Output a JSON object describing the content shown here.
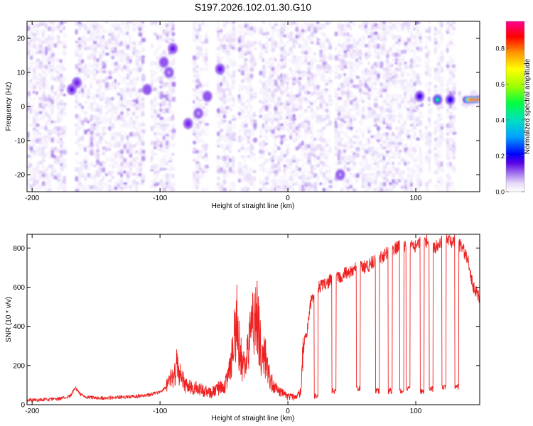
{
  "figure": {
    "title": "S197.2026.102.01.30.G10"
  },
  "chart_data": [
    {
      "type": "heatmap",
      "title": "S197.2026.102.01.30.G10",
      "xlabel": "Height of straight line (km)",
      "ylabel": "Frequency (Hz)",
      "xlim": [
        -204,
        150
      ],
      "ylim": [
        -25,
        25
      ],
      "xticks": [
        -200,
        -100,
        0,
        100
      ],
      "yticks": [
        -20,
        -10,
        0,
        10,
        20
      ],
      "colorbar": {
        "label": "Normalized spectral amplitude",
        "range": [
          0.0,
          0.95
        ],
        "ticks": [
          0.0,
          0.2,
          0.4,
          0.6,
          0.8
        ],
        "colormap": [
          "#ffffff",
          "#e6d8f8",
          "#b693ef",
          "#7b2bee",
          "#5a00e6",
          "#0000ff",
          "#00bfff",
          "#00ff60",
          "#c8ff00",
          "#ffff00",
          "#ff8000",
          "#ff0000",
          "#ff0090"
        ]
      },
      "gaps_km": [
        [
          -173,
          -167
        ],
        [
          -113,
          -108
        ],
        [
          -88,
          -80
        ],
        [
          -78,
          -75
        ],
        [
          -63,
          -55
        ],
        [
          -42,
          -39
        ],
        [
          -24,
          -22
        ],
        [
          35,
          37
        ],
        [
          38,
          40
        ],
        [
          104,
          107
        ],
        [
          112,
          114
        ],
        [
          121,
          124
        ],
        [
          131,
          133
        ]
      ],
      "hotspots": [
        {
          "x": -169,
          "y": 5,
          "amp": 0.3
        },
        {
          "x": -165,
          "y": 7,
          "amp": 0.25
        },
        {
          "x": -110,
          "y": 5,
          "amp": 0.2
        },
        {
          "x": -97,
          "y": 13,
          "amp": 0.2
        },
        {
          "x": -90,
          "y": 17,
          "amp": 0.3
        },
        {
          "x": -93,
          "y": 10,
          "amp": 0.15
        },
        {
          "x": -78,
          "y": -5,
          "amp": 0.25
        },
        {
          "x": -70,
          "y": -2,
          "amp": 0.15
        },
        {
          "x": -63,
          "y": 3,
          "amp": 0.2
        },
        {
          "x": -53,
          "y": 11,
          "amp": 0.3
        },
        {
          "x": 41,
          "y": -20,
          "amp": 0.15
        },
        {
          "x": 103,
          "y": 3,
          "amp": 0.35
        },
        {
          "x": 117,
          "y": 2,
          "amp": 0.55
        },
        {
          "x": 127,
          "y": 2,
          "amp": 0.4
        },
        {
          "x": 140,
          "y": 2,
          "amp": 0.92
        }
      ]
    },
    {
      "type": "line",
      "title": "",
      "xlabel": "Height of straight line (km)",
      "ylabel": "SNR (10 * v/v)",
      "xlim": [
        -204,
        150
      ],
      "ylim": [
        0,
        870
      ],
      "xticks": [
        -200,
        -100,
        0,
        100
      ],
      "yticks": [
        0,
        200,
        400,
        600,
        800
      ],
      "series": [
        {
          "name": "SNR",
          "color": "#ee2020",
          "x": [
            -204,
            -190,
            -180,
            -170,
            -166,
            -164,
            -160,
            -150,
            -140,
            -130,
            -120,
            -110,
            -100,
            -95,
            -90,
            -87,
            -85,
            -82,
            -80,
            -75,
            -70,
            -65,
            -60,
            -55,
            -50,
            -45,
            -43,
            -40,
            -38,
            -35,
            -30,
            -25,
            -22,
            -20,
            -18,
            -15,
            -10,
            -5,
            0,
            5,
            10,
            12,
            15,
            18,
            20,
            25,
            30,
            35,
            40,
            45,
            50,
            55,
            60,
            65,
            70,
            75,
            80,
            85,
            90,
            95,
            100,
            105,
            110,
            115,
            120,
            125,
            130,
            135,
            140,
            145,
            150
          ],
          "values": [
            20,
            22,
            25,
            40,
            85,
            60,
            38,
            30,
            32,
            35,
            38,
            45,
            60,
            90,
            140,
            200,
            160,
            120,
            100,
            90,
            85,
            70,
            60,
            80,
            95,
            180,
            300,
            430,
            300,
            180,
            320,
            500,
            330,
            210,
            250,
            150,
            80,
            60,
            40,
            40,
            60,
            280,
            380,
            530,
            560,
            600,
            620,
            640,
            650,
            670,
            680,
            700,
            700,
            720,
            740,
            760,
            790,
            800,
            810,
            805,
            810,
            830,
            840,
            800,
            830,
            840,
            835,
            810,
            760,
            600,
            540
          ],
          "low_band_x": [
            22,
            36,
            55,
            70,
            80,
            89,
            94,
            105,
            112,
            122,
            132
          ],
          "low_band_values": [
            45,
            70,
            80,
            70,
            70,
            70,
            80,
            70,
            80,
            90,
            90
          ]
        }
      ]
    }
  ]
}
